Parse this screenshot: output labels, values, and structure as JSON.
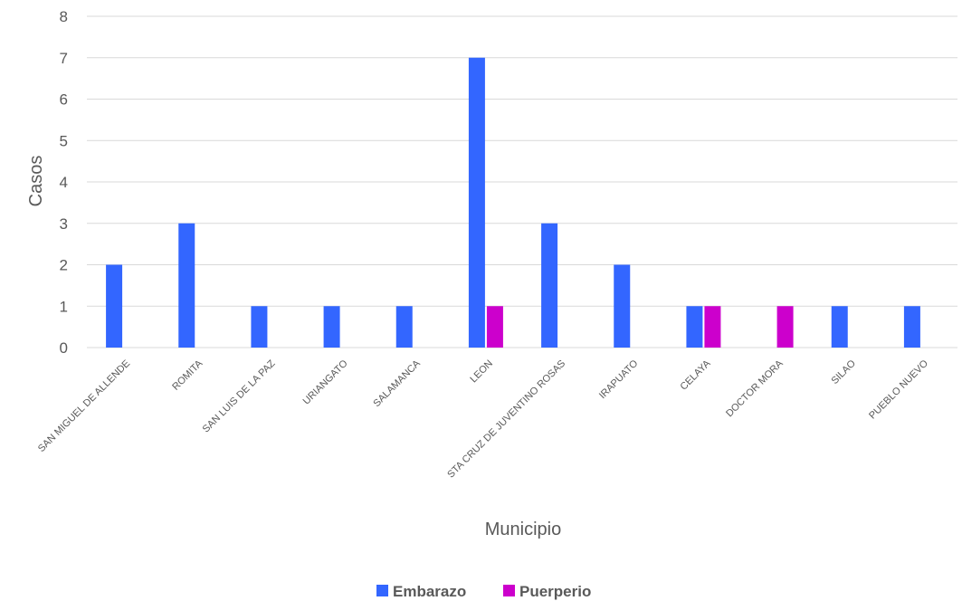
{
  "chart_data": {
    "type": "bar",
    "title": "",
    "xlabel": "Municipio",
    "ylabel": "Casos",
    "ylim": [
      0,
      8
    ],
    "yticks": [
      0,
      1,
      2,
      3,
      4,
      5,
      6,
      7,
      8
    ],
    "grid": true,
    "legend_position": "bottom",
    "categories": [
      "SAN MIGUEL DE ALLENDE",
      "ROMITA",
      "SAN LUIS DE LA PAZ",
      "URIANGATO",
      "SALAMANCA",
      "LEON",
      "STA CRUZ DE JUVENTINO ROSAS",
      "IRAPUATO",
      "CELAYA",
      "DOCTOR MORA",
      "SILAO",
      "PUEBLO NUEVO"
    ],
    "series": [
      {
        "name": "Embarazo",
        "color": "#3366ff",
        "values": [
          2,
          3,
          1,
          1,
          1,
          7,
          3,
          2,
          1,
          0,
          1,
          1
        ]
      },
      {
        "name": "Puerperio",
        "color": "#cc00cc",
        "values": [
          0,
          0,
          0,
          0,
          0,
          1,
          0,
          0,
          1,
          1,
          0,
          0
        ]
      }
    ]
  }
}
